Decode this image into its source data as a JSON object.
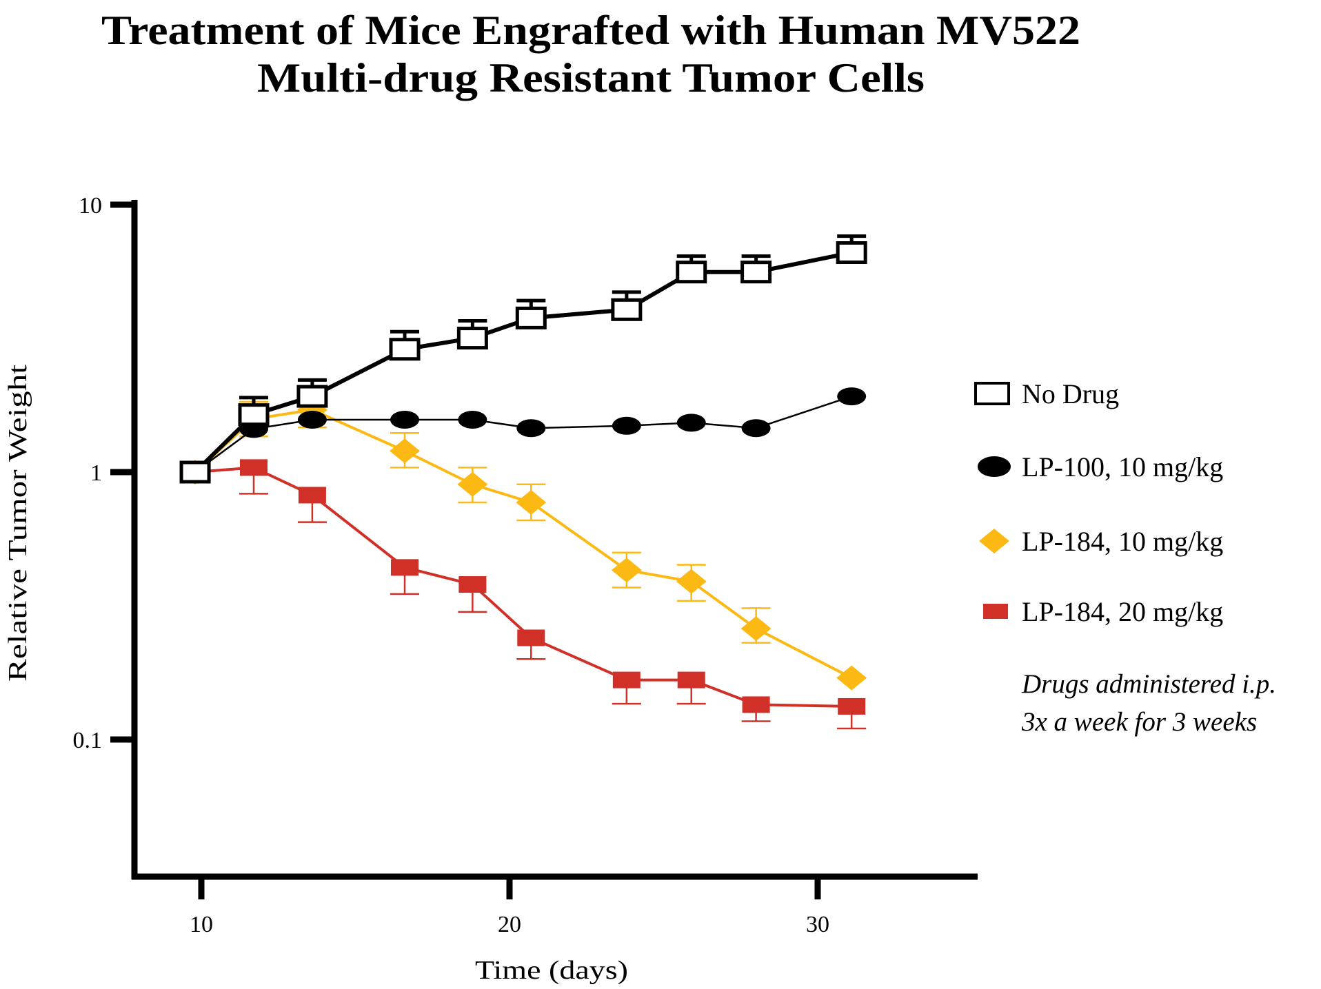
{
  "chart_data": {
    "type": "line",
    "title": [
      "Treatment of Mice Engrafted with Human MV522",
      "Multi-drug Resistant Tumor Cells"
    ],
    "xlabel": "Time (days)",
    "ylabel": "Relative Tumor Weight",
    "xscale": "linear",
    "yscale": "log",
    "xlim": [
      8,
      35
    ],
    "ylim": [
      0.03,
      10
    ],
    "xticks": [
      10,
      20,
      30
    ],
    "xtick_labels": [
      "10",
      "20",
      "30"
    ],
    "yticks": [
      10,
      1,
      0.1
    ],
    "ytick_labels": [
      "10",
      "1",
      "0.1"
    ],
    "grid": false,
    "legend_position": "right",
    "annotation": [
      "Drugs administered i.p.",
      "3x a week for 3 weeks"
    ],
    "series": [
      {
        "name": "No Drug",
        "marker": "open-square",
        "color": "#000000",
        "line": "thick",
        "x": [
          9.8,
          11.7,
          13.6,
          16.6,
          18.8,
          20.7,
          23.8,
          25.9,
          28.0,
          31.1
        ],
        "y": [
          1.0,
          1.64,
          1.92,
          2.88,
          3.17,
          3.77,
          4.05,
          5.6,
          5.6,
          6.62
        ],
        "err_upper": [
          null,
          1.9,
          2.21,
          3.35,
          3.68,
          4.38,
          4.71,
          6.42,
          6.42,
          7.63
        ],
        "err_lower": [
          null,
          null,
          null,
          null,
          null,
          null,
          null,
          null,
          null,
          null
        ]
      },
      {
        "name": "LP-100, 10 mg/kg",
        "marker": "ellipse",
        "color": "#000000",
        "line": "thin",
        "x": [
          9.8,
          11.7,
          13.6,
          16.6,
          18.8,
          20.7,
          23.8,
          25.9,
          28.0,
          31.1
        ],
        "y": [
          1.0,
          1.45,
          1.57,
          1.57,
          1.57,
          1.46,
          1.49,
          1.53,
          1.46,
          1.92
        ],
        "err_upper": [
          null,
          null,
          null,
          null,
          null,
          null,
          null,
          null,
          null,
          null
        ],
        "err_lower": [
          null,
          null,
          null,
          null,
          null,
          null,
          null,
          null,
          null,
          null
        ]
      },
      {
        "name": "LP-184, 10 mg/kg",
        "marker": "diamond",
        "color": "#FDB913",
        "line": "medium",
        "x": [
          9.8,
          11.7,
          13.6,
          16.6,
          18.8,
          20.7,
          23.8,
          25.9,
          28.0,
          31.1
        ],
        "y": [
          1.0,
          1.58,
          1.71,
          1.2,
          0.9,
          0.77,
          0.43,
          0.39,
          0.26,
          0.17
        ],
        "err_upper": [
          null,
          1.83,
          1.98,
          1.4,
          1.04,
          0.9,
          0.5,
          0.45,
          0.31,
          null
        ],
        "err_lower": [
          null,
          1.36,
          1.47,
          1.04,
          0.77,
          0.66,
          0.37,
          0.33,
          0.23,
          null
        ]
      },
      {
        "name": "LP-184, 20 mg/kg",
        "marker": "filled-square",
        "color": "#D03028",
        "line": "medium",
        "x": [
          9.8,
          11.7,
          13.6,
          16.6,
          18.8,
          20.7,
          23.8,
          25.9,
          28.0,
          31.1
        ],
        "y": [
          1.0,
          1.04,
          0.82,
          0.44,
          0.38,
          0.24,
          0.167,
          0.167,
          0.135,
          0.133
        ],
        "err_upper": [
          null,
          null,
          null,
          null,
          null,
          null,
          null,
          null,
          null,
          null
        ],
        "err_lower": [
          null,
          0.83,
          0.65,
          0.35,
          0.3,
          0.2,
          0.136,
          0.136,
          0.117,
          0.11
        ]
      }
    ]
  }
}
